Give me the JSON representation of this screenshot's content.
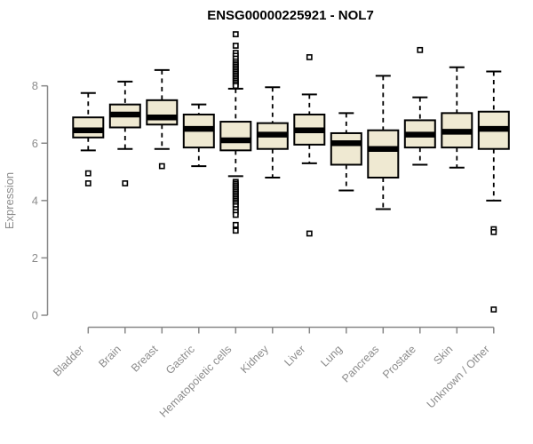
{
  "chart_data": {
    "type": "boxplot",
    "title": "ENSG00000225921 - NOL7",
    "ylabel": "Expression",
    "xlabel": "",
    "yticks": [
      0,
      2,
      4,
      6,
      8
    ],
    "axis_range": [
      0,
      8
    ],
    "grid": false,
    "legend": "none",
    "colors": {
      "box_fill": "#efe9d2",
      "box_stroke": "#000000",
      "median": "#000000",
      "whisker": "#000000",
      "axis": "#888888",
      "tick_label": "#8c8c8c",
      "title": "#000000",
      "background": "#ffffff"
    },
    "categories": [
      "Bladder",
      "Brain",
      "Breast",
      "Gastric",
      "Hematopoietic cells",
      "Kidney",
      "Liver",
      "Lung",
      "Pancreas",
      "Prostate",
      "Skin",
      "Unknown / Other"
    ],
    "series": [
      {
        "category": "Bladder",
        "low": 5.75,
        "q1": 6.2,
        "median": 6.45,
        "q3": 6.9,
        "high": 7.75,
        "outliers": [
          4.95,
          4.6
        ]
      },
      {
        "category": "Brain",
        "low": 5.8,
        "q1": 6.55,
        "median": 7.0,
        "q3": 7.35,
        "high": 8.15,
        "outliers": [
          4.6
        ]
      },
      {
        "category": "Breast",
        "low": 5.8,
        "q1": 6.65,
        "median": 6.9,
        "q3": 7.5,
        "high": 8.55,
        "outliers": [
          5.2
        ]
      },
      {
        "category": "Gastric",
        "low": 5.2,
        "q1": 5.85,
        "median": 6.5,
        "q3": 7.0,
        "high": 7.35,
        "outliers": []
      },
      {
        "category": "Hematopoietic cells",
        "low": 4.85,
        "q1": 5.75,
        "median": 6.1,
        "q3": 6.75,
        "high": 7.9,
        "outliers": [
          9.8,
          9.4,
          9.15,
          9.05,
          8.95,
          8.85,
          8.78,
          8.72,
          8.66,
          8.6,
          8.54,
          8.48,
          8.42,
          8.36,
          8.3,
          8.24,
          8.18,
          8.12,
          8.06,
          8.0,
          4.65,
          4.59,
          4.53,
          4.47,
          4.41,
          4.35,
          4.29,
          4.23,
          4.17,
          4.11,
          4.05,
          3.99,
          3.93,
          3.87,
          3.8,
          3.7,
          3.6,
          3.5,
          3.15,
          2.95
        ]
      },
      {
        "category": "Kidney",
        "low": 4.8,
        "q1": 5.8,
        "median": 6.3,
        "q3": 6.7,
        "high": 7.95,
        "outliers": []
      },
      {
        "category": "Liver",
        "low": 5.3,
        "q1": 5.95,
        "median": 6.45,
        "q3": 7.0,
        "high": 7.7,
        "outliers": [
          9.0,
          2.85
        ]
      },
      {
        "category": "Lung",
        "low": 4.35,
        "q1": 5.25,
        "median": 6.0,
        "q3": 6.35,
        "high": 7.05,
        "outliers": []
      },
      {
        "category": "Pancreas",
        "low": 3.7,
        "q1": 4.8,
        "median": 5.8,
        "q3": 6.45,
        "high": 8.35,
        "outliers": []
      },
      {
        "category": "Prostate",
        "low": 5.25,
        "q1": 5.85,
        "median": 6.3,
        "q3": 6.8,
        "high": 7.6,
        "outliers": [
          9.25
        ]
      },
      {
        "category": "Skin",
        "low": 5.15,
        "q1": 5.85,
        "median": 6.4,
        "q3": 7.05,
        "high": 8.65,
        "outliers": []
      },
      {
        "category": "Unknown / Other",
        "low": 4.0,
        "q1": 5.8,
        "median": 6.5,
        "q3": 7.1,
        "high": 8.5,
        "outliers": [
          3.0,
          2.9,
          0.2
        ]
      }
    ]
  }
}
